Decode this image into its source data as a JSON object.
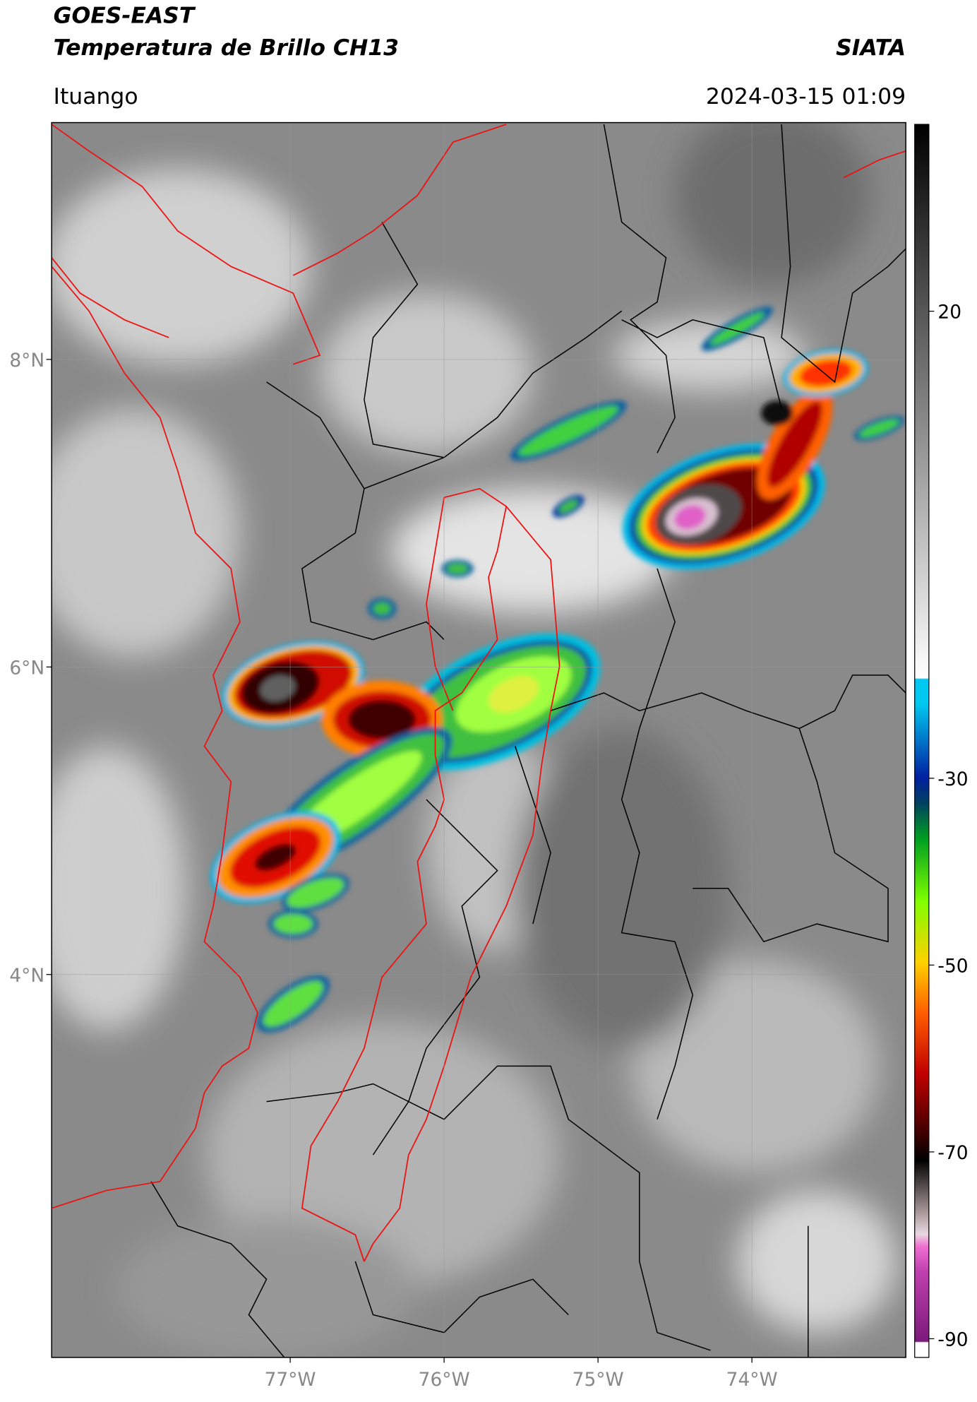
{
  "header": {
    "title": "GOES-EAST",
    "subtitle": "Temperatura de Brillo CH13",
    "source": "SIATA",
    "location": "Ituango",
    "datetime": "2024-03-15 01:09"
  },
  "map": {
    "xlim": [
      -78.55,
      -73.0
    ],
    "ylim": [
      1.51,
      9.54
    ],
    "xticks": [
      {
        "value": -77,
        "label": "77°W"
      },
      {
        "value": -76,
        "label": "76°W"
      },
      {
        "value": -75,
        "label": "75°W"
      },
      {
        "value": -74,
        "label": "74°W"
      }
    ],
    "yticks": [
      {
        "value": 8,
        "label": "8°N"
      },
      {
        "value": 6,
        "label": "6°N"
      },
      {
        "value": 4,
        "label": "4°N"
      }
    ],
    "grid": true
  },
  "colorbar": {
    "lim": [
      -92,
      40
    ],
    "ticks": [
      20,
      -30,
      -50,
      -70,
      -90
    ]
  }
}
